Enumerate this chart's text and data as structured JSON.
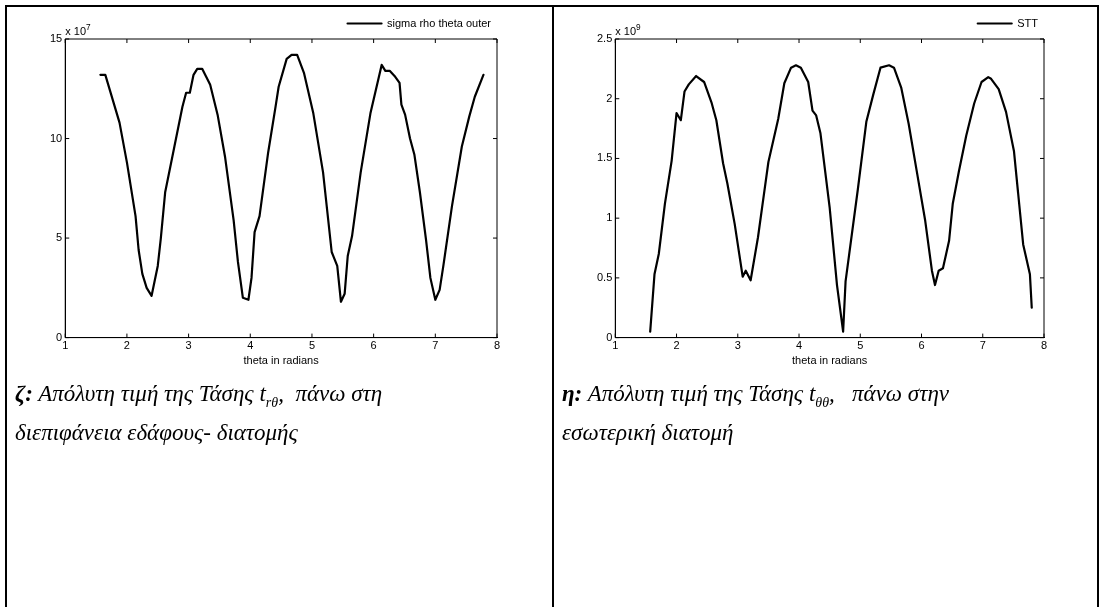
{
  "chart_data": [
    {
      "type": "line",
      "xlabel": "theta in radians",
      "xlim": [
        1,
        8
      ],
      "xticks": [
        1,
        2,
        3,
        4,
        5,
        6,
        7,
        8
      ],
      "ylim": [
        0,
        15
      ],
      "yticks": [
        0,
        5,
        10,
        15
      ],
      "grid": false,
      "legend": "top right",
      "marker": "none",
      "line_style": "solid",
      "annotations": [
        "x 10$^{7}$",
        "ζ: Απόλυτη τιμή της Τάσης t$_{rθ}$,  πάνω στη διεπιφάνεια εδάφους- διατομής"
      ],
      "series": [
        {
          "name": "sigma rho theta outer",
          "color": "#000000",
          "x": [
            1.57,
            1.65,
            1.88,
            2.0,
            2.14,
            2.19,
            2.25,
            2.32,
            2.4,
            2.5,
            2.55,
            2.62,
            2.77,
            2.9,
            2.96,
            3.02,
            3.08,
            3.14,
            3.22,
            3.35,
            3.47,
            3.59,
            3.73,
            3.8,
            3.88,
            3.97,
            4.02,
            4.07,
            4.15,
            4.29,
            4.41,
            4.46,
            4.59,
            4.67,
            4.76,
            4.87,
            5.02,
            5.18,
            5.32,
            5.41,
            5.47,
            5.53,
            5.58,
            5.65,
            5.79,
            5.95,
            6.13,
            6.19,
            6.26,
            6.35,
            6.42,
            6.45,
            6.51,
            6.59,
            6.66,
            6.75,
            6.85,
            6.92,
            7.0,
            7.07,
            7.13,
            7.27,
            7.43,
            7.55,
            7.64,
            7.78
          ],
          "values": [
            13.2,
            13.2,
            10.8,
            8.8,
            6.1,
            4.4,
            3.2,
            2.5,
            2.1,
            3.6,
            5.0,
            7.3,
            9.6,
            11.6,
            12.3,
            12.3,
            13.2,
            13.5,
            13.5,
            12.7,
            11.2,
            9.1,
            5.9,
            3.8,
            2.0,
            1.9,
            3.0,
            5.3,
            6.1,
            9.3,
            11.6,
            12.6,
            14.0,
            14.2,
            14.2,
            13.3,
            11.3,
            8.3,
            4.3,
            3.6,
            1.8,
            2.2,
            4.1,
            5.1,
            8.3,
            11.3,
            13.7,
            13.4,
            13.4,
            13.1,
            12.8,
            11.7,
            11.2,
            10.0,
            9.2,
            7.3,
            4.9,
            3.0,
            1.9,
            2.4,
            3.6,
            6.6,
            9.6,
            11.1,
            12.1,
            13.2
          ]
        }
      ]
    },
    {
      "type": "line",
      "xlabel": "theta in radians",
      "xlim": [
        1,
        8
      ],
      "xticks": [
        1,
        2,
        3,
        4,
        5,
        6,
        7,
        8
      ],
      "ylim": [
        0,
        2.5
      ],
      "yticks": [
        0,
        0.5,
        1,
        1.5,
        2,
        2.5
      ],
      "grid": false,
      "legend": "top right",
      "marker": "none",
      "line_style": "solid",
      "annotations": [
        "x 10$^{9}$",
        "η: Απόλυτη τιμή της Τάσης t$_{θθ}$,   πάνω στην εσωτερική διατομή"
      ],
      "series": [
        {
          "name": "STT",
          "color": "#000000",
          "x": [
            1.57,
            1.64,
            1.71,
            1.81,
            1.92,
            2.0,
            2.07,
            2.13,
            2.2,
            2.32,
            2.45,
            2.57,
            2.65,
            2.76,
            2.83,
            2.95,
            3.08,
            3.13,
            3.21,
            3.33,
            3.5,
            3.66,
            3.76,
            3.87,
            3.95,
            4.03,
            4.15,
            4.22,
            4.28,
            4.35,
            4.5,
            4.62,
            4.72,
            4.76,
            4.96,
            5.1,
            5.21,
            5.33,
            5.47,
            5.55,
            5.67,
            5.79,
            5.92,
            6.06,
            6.17,
            6.22,
            6.28,
            6.35,
            6.45,
            6.51,
            6.61,
            6.73,
            6.86,
            6.98,
            7.09,
            7.13,
            7.26,
            7.38,
            7.51,
            7.66,
            7.77,
            7.8
          ],
          "values": [
            0.05,
            0.53,
            0.7,
            1.12,
            1.48,
            1.88,
            1.82,
            2.06,
            2.12,
            2.19,
            2.14,
            1.97,
            1.82,
            1.46,
            1.29,
            0.95,
            0.51,
            0.56,
            0.48,
            0.84,
            1.47,
            1.83,
            2.13,
            2.26,
            2.28,
            2.26,
            2.14,
            1.9,
            1.86,
            1.71,
            1.09,
            0.44,
            0.05,
            0.47,
            1.24,
            1.81,
            2.03,
            2.26,
            2.28,
            2.26,
            2.09,
            1.79,
            1.4,
            0.98,
            0.56,
            0.44,
            0.56,
            0.58,
            0.81,
            1.12,
            1.39,
            1.69,
            1.96,
            2.14,
            2.18,
            2.17,
            2.08,
            1.89,
            1.56,
            0.78,
            0.53,
            0.25
          ]
        }
      ]
    }
  ]
}
